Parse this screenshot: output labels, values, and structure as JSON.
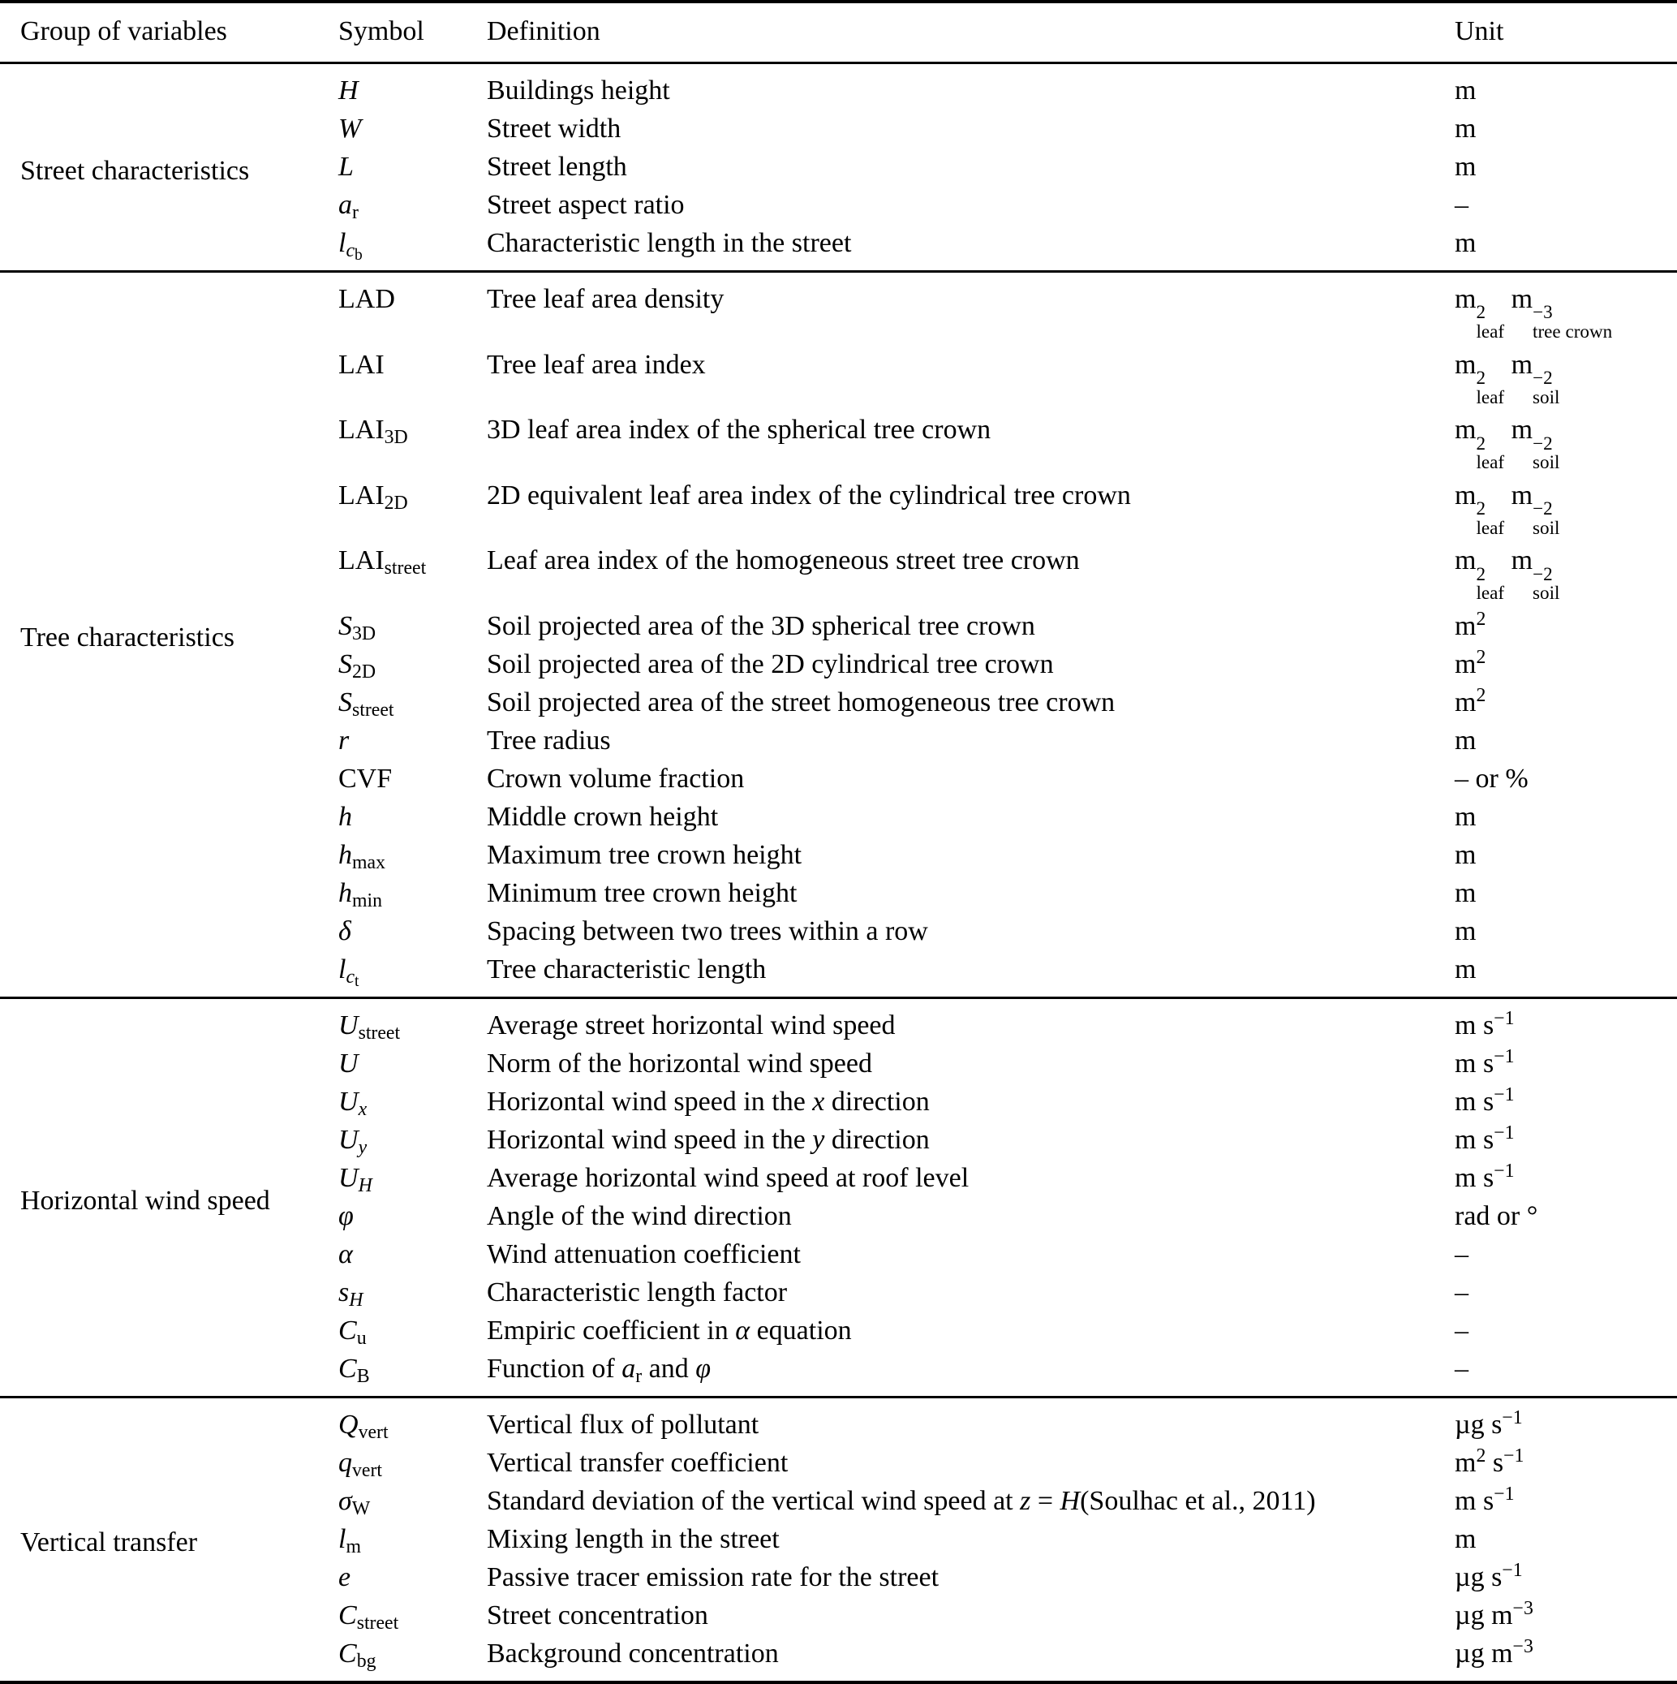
{
  "table": {
    "headers": {
      "group": "Group of variables",
      "symbol": "Symbol",
      "definition": "Definition",
      "unit": "Unit"
    },
    "sections": [
      {
        "group": "Street characteristics",
        "rows": [
          {
            "s": "<i>H</i>",
            "d": "Buildings height",
            "u": "m"
          },
          {
            "s": "<i>W</i>",
            "d": "Street width",
            "u": "m"
          },
          {
            "s": "<i>L</i>",
            "d": "Street length",
            "u": "m"
          },
          {
            "s": "<i>a</i><sub>r</sub>",
            "d": "Street aspect ratio",
            "u": "–"
          },
          {
            "s": "<i>l</i><sub><i>c</i><sub>b</sub></sub>",
            "d": "Characteristic length in the street",
            "u": "m"
          }
        ]
      },
      {
        "group": "Tree characteristics",
        "rows": [
          {
            "s": "LAD",
            "d": "Tree leaf area density",
            "u": "m<span class='ss'><span>2</span><span>leaf</span></span> m<span class='ss'><span>−3</span><span>tree crown</span></span>"
          },
          {
            "s": "LAI",
            "d": "Tree leaf area index",
            "u": "m<span class='ss'><span>2</span><span>leaf</span></span> m<span class='ss'><span>−2</span><span>soil</span></span>"
          },
          {
            "s": "LAI<sub>3D</sub>",
            "d": "3D leaf area index of the spherical tree crown",
            "u": "m<span class='ss'><span>2</span><span>leaf</span></span> m<span class='ss'><span>−2</span><span>soil</span></span>"
          },
          {
            "s": "LAI<sub>2D</sub>",
            "d": "2D equivalent leaf area index of the cylindrical tree crown",
            "u": "m<span class='ss'><span>2</span><span>leaf</span></span> m<span class='ss'><span>−2</span><span>soil</span></span>"
          },
          {
            "s": "LAI<sub>street</sub>",
            "d": "Leaf area index of the homogeneous street tree crown",
            "u": "m<span class='ss'><span>2</span><span>leaf</span></span> m<span class='ss'><span>−2</span><span>soil</span></span>"
          },
          {
            "s": "<i>S</i><sub>3D</sub>",
            "d": "Soil projected area of the 3D spherical tree crown",
            "u": "m<sup>2</sup>"
          },
          {
            "s": "<i>S</i><sub>2D</sub>",
            "d": "Soil projected area of the 2D cylindrical tree crown",
            "u": "m<sup>2</sup>"
          },
          {
            "s": "<i>S</i><sub>street</sub>",
            "d": "Soil projected area of the street homogeneous tree crown",
            "u": "m<sup>2</sup>"
          },
          {
            "s": "<i>r</i>",
            "d": "Tree radius",
            "u": "m"
          },
          {
            "s": "CVF",
            "d": "Crown volume fraction",
            "u": "– or %"
          },
          {
            "s": "<i>h</i>",
            "d": "Middle crown height",
            "u": "m"
          },
          {
            "s": "<i>h</i><sub>max</sub>",
            "d": "Maximum tree crown height",
            "u": "m"
          },
          {
            "s": "<i>h</i><sub>min</sub>",
            "d": "Minimum tree crown height",
            "u": "m"
          },
          {
            "s": "<i>δ</i>",
            "d": "Spacing between two trees within a row",
            "u": "m"
          },
          {
            "s": "<i>l</i><sub><i>c</i><sub>t</sub></sub>",
            "d": "Tree characteristic length",
            "u": "m"
          }
        ]
      },
      {
        "group": "Horizontal wind speed",
        "rows": [
          {
            "s": "<i>U</i><sub>street</sub>",
            "d": "Average street horizontal wind speed",
            "u": "m s<sup>−1</sup>"
          },
          {
            "s": "<i>U</i>",
            "d": "Norm of the horizontal wind speed",
            "u": "m s<sup>−1</sup>"
          },
          {
            "s": "<i>U</i><sub><i>x</i></sub>",
            "d": "Horizontal wind speed in the <i>x</i> direction",
            "u": "m s<sup>−1</sup>"
          },
          {
            "s": "<i>U</i><sub><i>y</i></sub>",
            "d": "Horizontal wind speed in the <i>y</i> direction",
            "u": "m s<sup>−1</sup>"
          },
          {
            "s": "<i>U</i><sub><i>H</i></sub>",
            "d": "Average horizontal wind speed at roof level",
            "u": "m s<sup>−1</sup>"
          },
          {
            "s": "<i>φ</i>",
            "d": "Angle of the wind direction",
            "u": "rad or °"
          },
          {
            "s": "<i>α</i>",
            "d": "Wind attenuation coefficient",
            "u": "–"
          },
          {
            "s": "<i>s</i><sub><i>H</i></sub>",
            "d": "Characteristic length factor",
            "u": "–"
          },
          {
            "s": "<i>C</i><sub>u</sub>",
            "d": "Empiric coefficient in <i>α</i> equation",
            "u": "–"
          },
          {
            "s": "<i>C</i><sub>B</sub>",
            "d": "Function of <i>a</i><sub>r</sub> and <i>φ</i>",
            "u": "–"
          }
        ]
      },
      {
        "group": "Vertical transfer",
        "rows": [
          {
            "s": "<i>Q</i><sub>vert</sub>",
            "d": "Vertical flux of pollutant",
            "u": "µg s<sup>−1</sup>"
          },
          {
            "s": "<i>q</i><sub>vert</sub>",
            "d": "Vertical transfer coefficient",
            "u": "m<sup>2</sup> s<sup>−1</sup>"
          },
          {
            "s": "<i>σ</i><sub>W</sub>",
            "d": "Standard deviation of the vertical wind speed at <i>z</i> = <i>H</i>(Soulhac et al., 2011)",
            "u": "m s<sup>−1</sup>"
          },
          {
            "s": "<i>l</i><sub>m</sub>",
            "d": "Mixing length in the street",
            "u": "m"
          },
          {
            "s": "<i>e</i>",
            "d": "Passive tracer emission rate for the street",
            "u": "µg s<sup>−1</sup>"
          },
          {
            "s": "<i>C</i><sub>street</sub>",
            "d": "Street concentration",
            "u": "µg m<sup>−3</sup>"
          },
          {
            "s": "<i>C</i><sub>bg</sub>",
            "d": "Background concentration",
            "u": "µg m<sup>−3</sup>"
          }
        ]
      }
    ]
  }
}
